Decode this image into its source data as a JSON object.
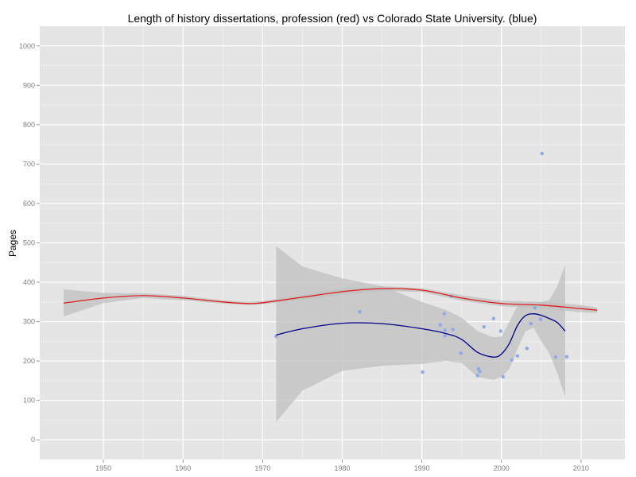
{
  "chart_data": {
    "type": "scatter",
    "title": "Length of history dissertations, profession (red) vs Colorado State University. (blue)",
    "xlabel": "",
    "ylabel": "Pages",
    "xlim": [
      1942,
      2015.5
    ],
    "ylim": [
      -50,
      1050
    ],
    "x_ticks": [
      1950,
      1960,
      1970,
      1980,
      1990,
      2000,
      2010
    ],
    "y_ticks": [
      0,
      100,
      200,
      300,
      400,
      500,
      600,
      700,
      800,
      900,
      1000
    ],
    "grid": true,
    "colors": {
      "panel": "#e5e5e5",
      "grid_major": "#ffffff",
      "grid_minor": "#f2f2f2",
      "points": "#8fa8e8",
      "profession_line": "#e01d1d",
      "csu_line": "#00008b",
      "confidence_band": "#bfbfbf"
    },
    "points": [
      {
        "x": 1971.7,
        "y": 263
      },
      {
        "x": 1982.2,
        "y": 325
      },
      {
        "x": 1990.1,
        "y": 172
      },
      {
        "x": 1992.3,
        "y": 292
      },
      {
        "x": 1992.8,
        "y": 320
      },
      {
        "x": 1992.9,
        "y": 278
      },
      {
        "x": 1992.9,
        "y": 264
      },
      {
        "x": 1993.7,
        "y": 365
      },
      {
        "x": 1993.9,
        "y": 280
      },
      {
        "x": 1994.9,
        "y": 220
      },
      {
        "x": 1997.0,
        "y": 163
      },
      {
        "x": 1997.1,
        "y": 180
      },
      {
        "x": 1997.3,
        "y": 174
      },
      {
        "x": 1997.8,
        "y": 287
      },
      {
        "x": 1999.0,
        "y": 308
      },
      {
        "x": 1999.9,
        "y": 276
      },
      {
        "x": 2000.2,
        "y": 160
      },
      {
        "x": 2001.3,
        "y": 203
      },
      {
        "x": 2002.0,
        "y": 213
      },
      {
        "x": 2003.2,
        "y": 232
      },
      {
        "x": 2003.7,
        "y": 295
      },
      {
        "x": 2004.2,
        "y": 335
      },
      {
        "x": 2004.9,
        "y": 306
      },
      {
        "x": 2005.1,
        "y": 727
      },
      {
        "x": 2006.8,
        "y": 210
      },
      {
        "x": 2008.2,
        "y": 211
      }
    ],
    "series": [
      {
        "key": "profession",
        "x": [
          1945,
          1950,
          1955,
          1960,
          1965,
          1968,
          1970,
          1975,
          1980,
          1985,
          1990,
          1995,
          2000,
          2005,
          2010,
          2012
        ],
        "y": [
          347,
          360,
          366,
          360,
          350,
          346,
          348,
          362,
          376,
          384,
          380,
          360,
          346,
          342,
          333,
          329
        ],
        "band_upper": [
          382,
          373,
          372,
          366,
          354,
          350,
          352,
          368,
          384,
          390,
          385,
          367,
          353,
          350,
          342,
          336
        ],
        "band_lower": [
          313,
          347,
          360,
          354,
          346,
          342,
          344,
          356,
          368,
          378,
          375,
          353,
          339,
          334,
          324,
          322
        ]
      },
      {
        "key": "csu",
        "x": [
          1971.7,
          1975,
          1980,
          1985,
          1990,
          1993,
          1995,
          1997,
          1999,
          2000,
          2001,
          2002,
          2003,
          2004,
          2005,
          2006,
          2007,
          2008
        ],
        "y": [
          266,
          282,
          296,
          295,
          282,
          270,
          255,
          222,
          210,
          218,
          245,
          290,
          315,
          320,
          316,
          308,
          298,
          276
        ],
        "band_upper": [
          492,
          440,
          410,
          390,
          350,
          330,
          310,
          276,
          260,
          262,
          300,
          340,
          345,
          345,
          350,
          355,
          390,
          445
        ],
        "band_lower": [
          45,
          125,
          175,
          188,
          193,
          200,
          195,
          160,
          152,
          160,
          180,
          230,
          275,
          285,
          250,
          220,
          170,
          108
        ]
      }
    ]
  }
}
